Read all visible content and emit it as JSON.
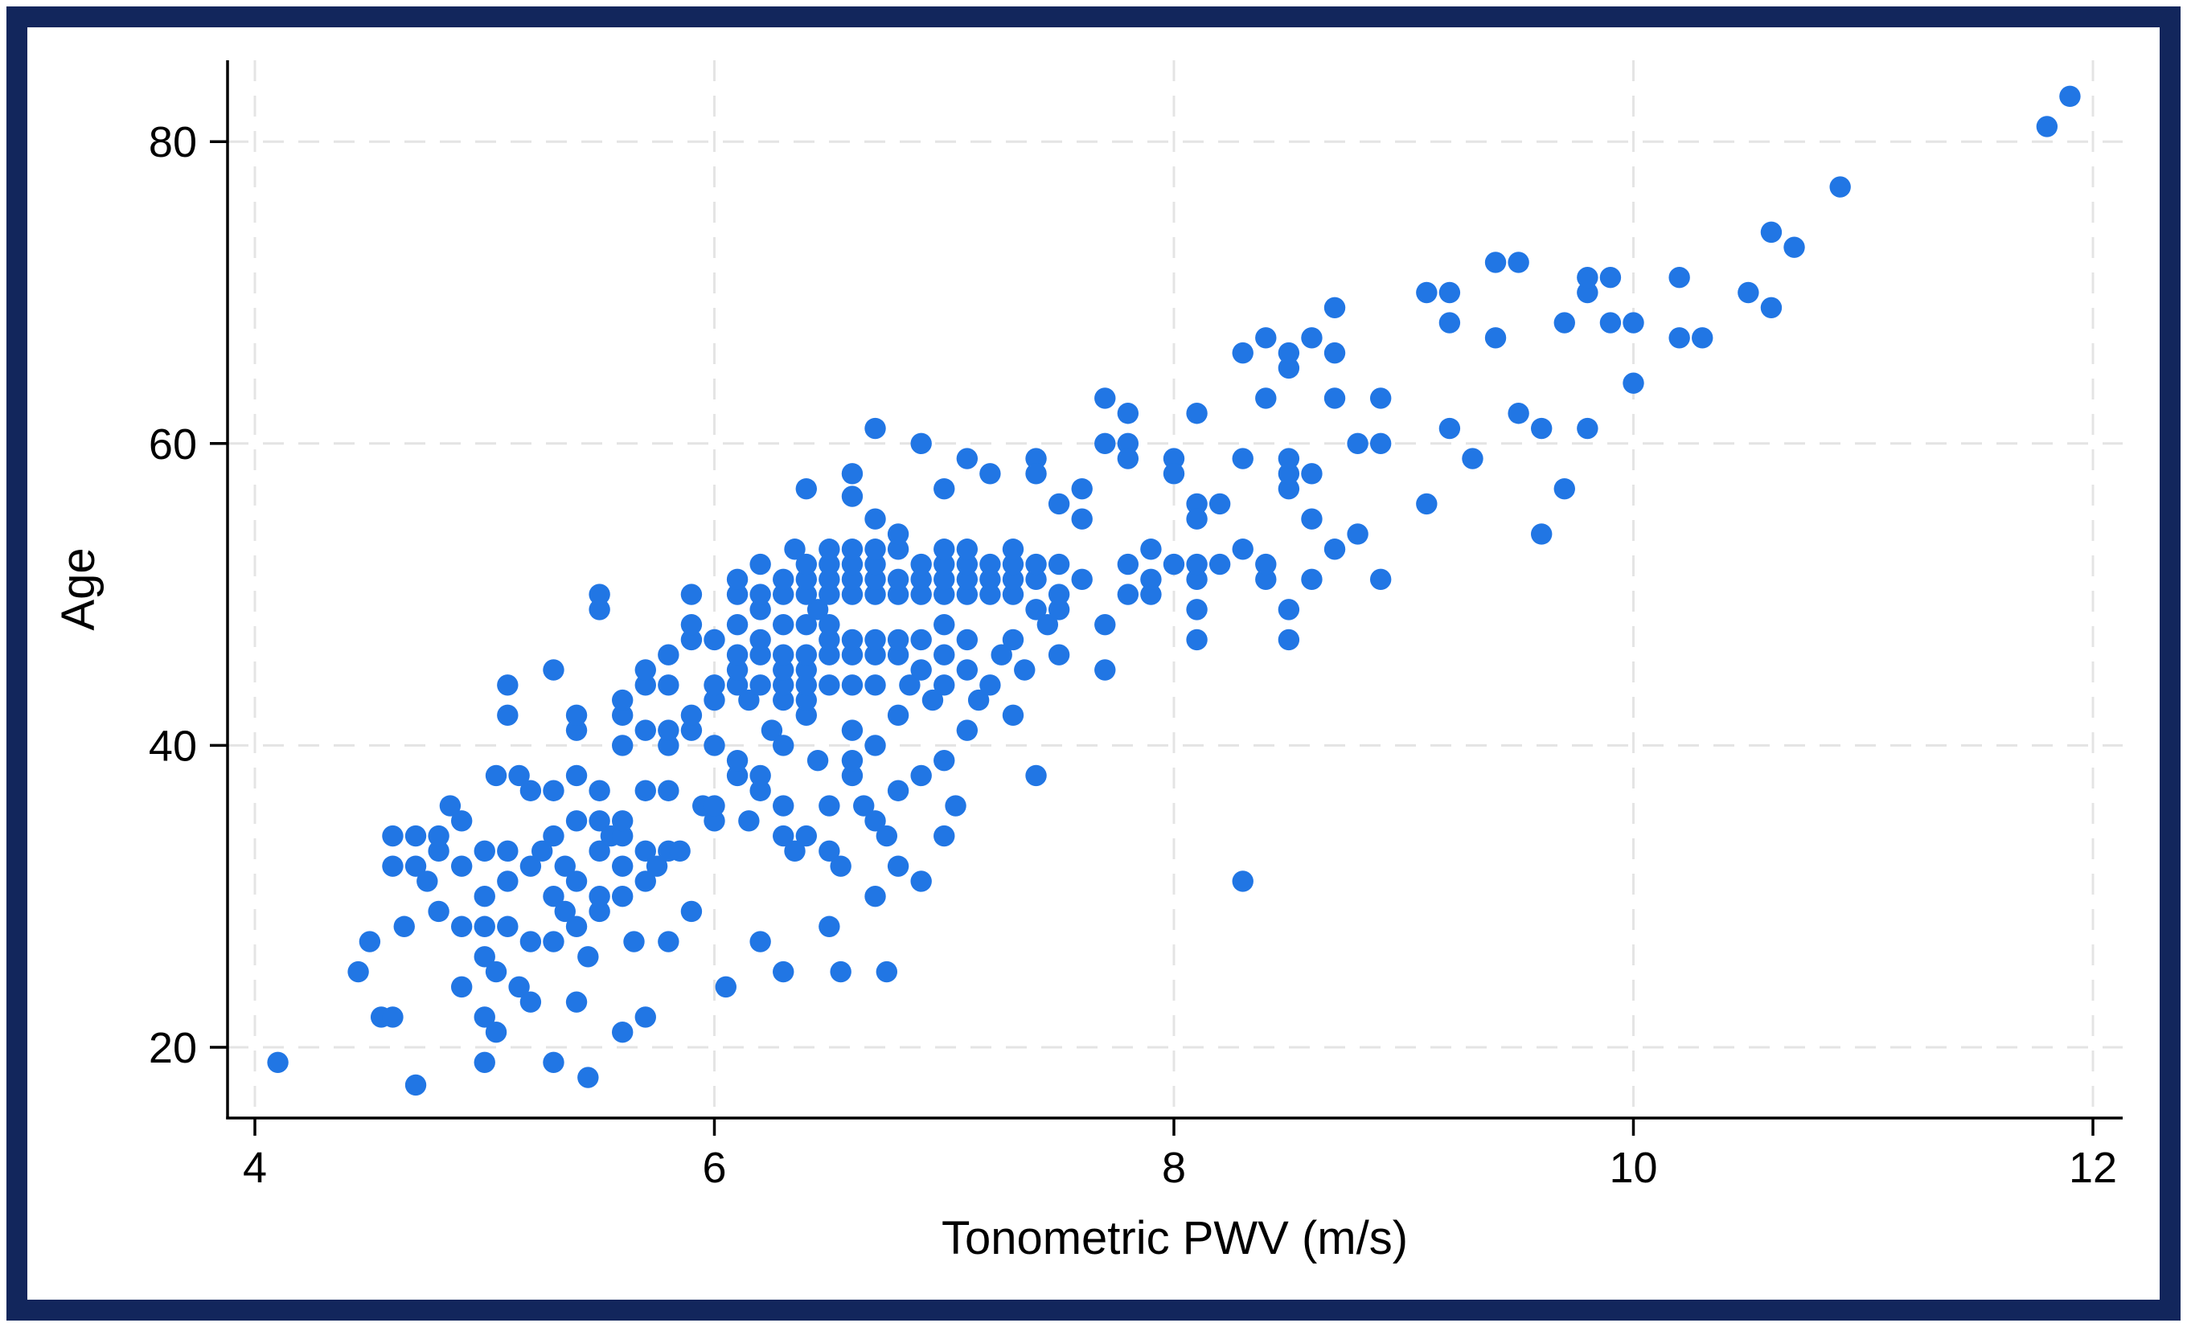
{
  "frame": {
    "border_color": "#12265c",
    "background_color": "#ffffff"
  },
  "chart_data": {
    "type": "scatter",
    "title": "",
    "xlabel": "Tonometric PWV (m/s)",
    "ylabel": "Age",
    "x_ticks": [
      4,
      6,
      8,
      10,
      12
    ],
    "y_ticks": [
      20,
      40,
      60,
      80
    ],
    "xlim": [
      3.88,
      12.13
    ],
    "ylim": [
      15,
      85.5
    ],
    "grid": "dashed",
    "legend": "none",
    "marker_color": "#2176e4",
    "marker_radius": 13.2,
    "grid_color": "#e4e4e4",
    "axis_color": "#000000",
    "points": [
      [
        4.1,
        19
      ],
      [
        4.45,
        25
      ],
      [
        4.5,
        27
      ],
      [
        4.55,
        22
      ],
      [
        4.6,
        22
      ],
      [
        4.6,
        32
      ],
      [
        4.6,
        34
      ],
      [
        4.65,
        28
      ],
      [
        4.7,
        17.5
      ],
      [
        4.7,
        32
      ],
      [
        4.7,
        34
      ],
      [
        4.75,
        31
      ],
      [
        4.8,
        29
      ],
      [
        4.8,
        33
      ],
      [
        4.8,
        34
      ],
      [
        4.85,
        36
      ],
      [
        4.9,
        24
      ],
      [
        4.9,
        28
      ],
      [
        4.9,
        32
      ],
      [
        4.9,
        35
      ],
      [
        5.0,
        19
      ],
      [
        5.0,
        22
      ],
      [
        5.0,
        26
      ],
      [
        5.0,
        28
      ],
      [
        5.0,
        30
      ],
      [
        5.0,
        33
      ],
      [
        5.05,
        21
      ],
      [
        5.05,
        25
      ],
      [
        5.05,
        38
      ],
      [
        5.1,
        28
      ],
      [
        5.1,
        31
      ],
      [
        5.1,
        33
      ],
      [
        5.1,
        42
      ],
      [
        5.1,
        44
      ],
      [
        5.15,
        24
      ],
      [
        5.15,
        38
      ],
      [
        5.2,
        23
      ],
      [
        5.2,
        27
      ],
      [
        5.2,
        32
      ],
      [
        5.2,
        37
      ],
      [
        5.25,
        33
      ],
      [
        5.3,
        19
      ],
      [
        5.3,
        27
      ],
      [
        5.3,
        30
      ],
      [
        5.3,
        34
      ],
      [
        5.3,
        37
      ],
      [
        5.3,
        45
      ],
      [
        5.35,
        29
      ],
      [
        5.35,
        32
      ],
      [
        5.4,
        23
      ],
      [
        5.4,
        28
      ],
      [
        5.4,
        31
      ],
      [
        5.4,
        35
      ],
      [
        5.4,
        38
      ],
      [
        5.4,
        41
      ],
      [
        5.4,
        42
      ],
      [
        5.45,
        18
      ],
      [
        5.45,
        26
      ],
      [
        5.5,
        29
      ],
      [
        5.5,
        30
      ],
      [
        5.5,
        33
      ],
      [
        5.5,
        35
      ],
      [
        5.5,
        37
      ],
      [
        5.5,
        49
      ],
      [
        5.5,
        50
      ],
      [
        5.55,
        34
      ],
      [
        5.6,
        21
      ],
      [
        5.6,
        30
      ],
      [
        5.6,
        32
      ],
      [
        5.6,
        34
      ],
      [
        5.6,
        35
      ],
      [
        5.6,
        40
      ],
      [
        5.6,
        42
      ],
      [
        5.6,
        43
      ],
      [
        5.65,
        27
      ],
      [
        5.7,
        22
      ],
      [
        5.7,
        31
      ],
      [
        5.7,
        33
      ],
      [
        5.7,
        37
      ],
      [
        5.7,
        41
      ],
      [
        5.7,
        44
      ],
      [
        5.7,
        45
      ],
      [
        5.75,
        32
      ],
      [
        5.8,
        27
      ],
      [
        5.8,
        33
      ],
      [
        5.8,
        37
      ],
      [
        5.8,
        40
      ],
      [
        5.8,
        41
      ],
      [
        5.8,
        44
      ],
      [
        5.8,
        46
      ],
      [
        5.85,
        33
      ],
      [
        5.9,
        29
      ],
      [
        5.9,
        41
      ],
      [
        5.9,
        42
      ],
      [
        5.9,
        47
      ],
      [
        5.9,
        48
      ],
      [
        5.9,
        50
      ],
      [
        5.95,
        36
      ],
      [
        6.0,
        35
      ],
      [
        6.0,
        36
      ],
      [
        6.0,
        40
      ],
      [
        6.0,
        43
      ],
      [
        6.0,
        44
      ],
      [
        6.0,
        47
      ],
      [
        6.05,
        24
      ],
      [
        6.1,
        38
      ],
      [
        6.1,
        39
      ],
      [
        6.1,
        44
      ],
      [
        6.1,
        45
      ],
      [
        6.1,
        46
      ],
      [
        6.1,
        48
      ],
      [
        6.1,
        50
      ],
      [
        6.15,
        35
      ],
      [
        6.15,
        43
      ],
      [
        6.2,
        27
      ],
      [
        6.2,
        37
      ],
      [
        6.2,
        38
      ],
      [
        6.2,
        44
      ],
      [
        6.2,
        46
      ],
      [
        6.2,
        47
      ],
      [
        6.2,
        49
      ],
      [
        6.25,
        41
      ],
      [
        6.3,
        25
      ],
      [
        6.3,
        34
      ],
      [
        6.3,
        36
      ],
      [
        6.3,
        40
      ],
      [
        6.3,
        43
      ],
      [
        6.3,
        44
      ],
      [
        6.3,
        45
      ],
      [
        6.3,
        46
      ],
      [
        6.3,
        48
      ],
      [
        6.35,
        33
      ],
      [
        6.4,
        34
      ],
      [
        6.4,
        42
      ],
      [
        6.4,
        43
      ],
      [
        6.4,
        44
      ],
      [
        6.4,
        45
      ],
      [
        6.4,
        46
      ],
      [
        6.4,
        48
      ],
      [
        6.45,
        39
      ],
      [
        6.45,
        49
      ],
      [
        6.5,
        28
      ],
      [
        6.5,
        33
      ],
      [
        6.5,
        36
      ],
      [
        6.5,
        44
      ],
      [
        6.5,
        46
      ],
      [
        6.5,
        47
      ],
      [
        6.5,
        48
      ],
      [
        6.55,
        25
      ],
      [
        6.55,
        32
      ],
      [
        6.6,
        38
      ],
      [
        6.6,
        39
      ],
      [
        6.6,
        41
      ],
      [
        6.6,
        44
      ],
      [
        6.6,
        46
      ],
      [
        6.6,
        47
      ],
      [
        6.65,
        36
      ],
      [
        6.7,
        30
      ],
      [
        6.7,
        35
      ],
      [
        6.7,
        40
      ],
      [
        6.7,
        44
      ],
      [
        6.7,
        46
      ],
      [
        6.7,
        47
      ],
      [
        6.75,
        25
      ],
      [
        6.75,
        34
      ],
      [
        6.8,
        32
      ],
      [
        6.8,
        37
      ],
      [
        6.8,
        42
      ],
      [
        6.8,
        46
      ],
      [
        6.8,
        47
      ],
      [
        6.85,
        44
      ],
      [
        6.9,
        31
      ],
      [
        6.9,
        38
      ],
      [
        6.9,
        45
      ],
      [
        6.9,
        47
      ],
      [
        6.95,
        43
      ],
      [
        7.0,
        34
      ],
      [
        7.0,
        39
      ],
      [
        7.0,
        44
      ],
      [
        7.0,
        46
      ],
      [
        7.0,
        48
      ],
      [
        7.05,
        36
      ],
      [
        7.1,
        41
      ],
      [
        7.1,
        45
      ],
      [
        7.1,
        47
      ],
      [
        7.15,
        43
      ],
      [
        7.2,
        44
      ],
      [
        7.25,
        46
      ],
      [
        7.3,
        42
      ],
      [
        7.3,
        47
      ],
      [
        7.35,
        45
      ],
      [
        7.4,
        38
      ],
      [
        7.4,
        49
      ],
      [
        7.45,
        48
      ],
      [
        7.5,
        46
      ],
      [
        7.5,
        49
      ],
      [
        7.7,
        45
      ],
      [
        7.7,
        48
      ],
      [
        8.1,
        47
      ],
      [
        8.1,
        49
      ],
      [
        6.1,
        51
      ],
      [
        6.2,
        50
      ],
      [
        6.2,
        52
      ],
      [
        6.3,
        50
      ],
      [
        6.3,
        51
      ],
      [
        6.35,
        53
      ],
      [
        6.4,
        50
      ],
      [
        6.4,
        51
      ],
      [
        6.4,
        52
      ],
      [
        6.5,
        50
      ],
      [
        6.5,
        51
      ],
      [
        6.5,
        52
      ],
      [
        6.5,
        53
      ],
      [
        6.6,
        50
      ],
      [
        6.6,
        51
      ],
      [
        6.6,
        52
      ],
      [
        6.6,
        53
      ],
      [
        6.7,
        50
      ],
      [
        6.7,
        51
      ],
      [
        6.7,
        52
      ],
      [
        6.7,
        53
      ],
      [
        6.7,
        55
      ],
      [
        6.8,
        50
      ],
      [
        6.8,
        51
      ],
      [
        6.8,
        53
      ],
      [
        6.8,
        54
      ],
      [
        6.9,
        50
      ],
      [
        6.9,
        51
      ],
      [
        6.9,
        52
      ],
      [
        7.0,
        50
      ],
      [
        7.0,
        51
      ],
      [
        7.0,
        52
      ],
      [
        7.0,
        53
      ],
      [
        7.1,
        50
      ],
      [
        7.1,
        51
      ],
      [
        7.1,
        52
      ],
      [
        7.1,
        53
      ],
      [
        7.2,
        50
      ],
      [
        7.2,
        51
      ],
      [
        7.2,
        52
      ],
      [
        7.3,
        50
      ],
      [
        7.3,
        51
      ],
      [
        7.3,
        52
      ],
      [
        7.3,
        53
      ],
      [
        7.4,
        51
      ],
      [
        7.4,
        52
      ],
      [
        7.5,
        50
      ],
      [
        7.5,
        52
      ],
      [
        7.6,
        51
      ],
      [
        7.8,
        50
      ],
      [
        7.8,
        52
      ],
      [
        7.9,
        50
      ],
      [
        7.9,
        51
      ],
      [
        8.0,
        52
      ],
      [
        8.1,
        51
      ],
      [
        8.1,
        52
      ],
      [
        6.4,
        57
      ],
      [
        6.6,
        58
      ],
      [
        6.6,
        56.5
      ],
      [
        6.7,
        61
      ],
      [
        6.9,
        60
      ],
      [
        7.0,
        57
      ],
      [
        7.1,
        59
      ],
      [
        7.2,
        58
      ],
      [
        7.4,
        59
      ],
      [
        7.4,
        58
      ],
      [
        7.5,
        56
      ],
      [
        7.6,
        57
      ],
      [
        7.6,
        55
      ],
      [
        7.7,
        63
      ],
      [
        7.7,
        60
      ],
      [
        7.8,
        62
      ],
      [
        7.8,
        60
      ],
      [
        7.8,
        59
      ],
      [
        7.9,
        53
      ],
      [
        8.0,
        59
      ],
      [
        8.0,
        58
      ],
      [
        8.1,
        62
      ],
      [
        8.1,
        56
      ],
      [
        8.1,
        55
      ],
      [
        8.2,
        52
      ],
      [
        8.2,
        56
      ],
      [
        8.3,
        31
      ],
      [
        8.3,
        53
      ],
      [
        8.3,
        59
      ],
      [
        8.3,
        66
      ],
      [
        8.4,
        51
      ],
      [
        8.4,
        52
      ],
      [
        8.4,
        63
      ],
      [
        8.4,
        67
      ],
      [
        8.5,
        47
      ],
      [
        8.5,
        49
      ],
      [
        8.5,
        57
      ],
      [
        8.5,
        58
      ],
      [
        8.5,
        59
      ],
      [
        8.5,
        65
      ],
      [
        8.5,
        66
      ],
      [
        8.6,
        51
      ],
      [
        8.6,
        55
      ],
      [
        8.6,
        58
      ],
      [
        8.6,
        67
      ],
      [
        8.7,
        53
      ],
      [
        8.7,
        63
      ],
      [
        8.7,
        66
      ],
      [
        8.7,
        69
      ],
      [
        8.8,
        54
      ],
      [
        8.8,
        60
      ],
      [
        8.9,
        51
      ],
      [
        8.9,
        60
      ],
      [
        8.9,
        63
      ],
      [
        9.1,
        56
      ],
      [
        9.1,
        70
      ],
      [
        9.2,
        61
      ],
      [
        9.2,
        68
      ],
      [
        9.2,
        70
      ],
      [
        9.3,
        59
      ],
      [
        9.4,
        67
      ],
      [
        9.4,
        72
      ],
      [
        9.5,
        62
      ],
      [
        9.5,
        72
      ],
      [
        9.6,
        54
      ],
      [
        9.6,
        61
      ],
      [
        9.7,
        57
      ],
      [
        9.7,
        68
      ],
      [
        9.8,
        61
      ],
      [
        9.8,
        70
      ],
      [
        9.8,
        71
      ],
      [
        9.9,
        68
      ],
      [
        9.9,
        71
      ],
      [
        10.0,
        64
      ],
      [
        10.0,
        68
      ],
      [
        10.2,
        67
      ],
      [
        10.2,
        71
      ],
      [
        10.3,
        67
      ],
      [
        10.5,
        70
      ],
      [
        10.6,
        69
      ],
      [
        10.6,
        74
      ],
      [
        10.7,
        73
      ],
      [
        10.9,
        77
      ],
      [
        11.8,
        81
      ],
      [
        11.9,
        83
      ]
    ]
  }
}
